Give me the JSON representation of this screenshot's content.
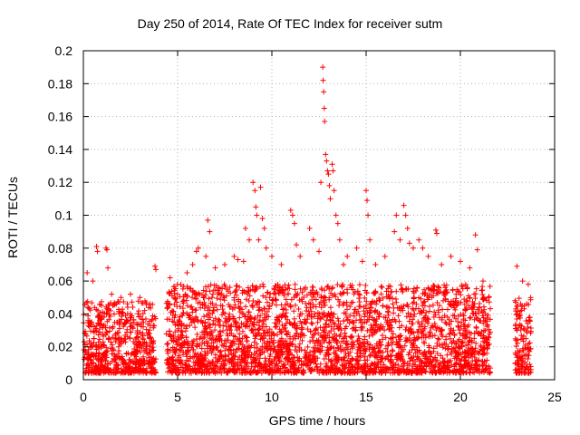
{
  "chart_data": {
    "type": "scatter",
    "title": "Day 250 of 2014, Rate Of TEC Index for receiver sutm",
    "xlabel": "GPS time / hours",
    "ylabel": "ROTI / TECUs",
    "xlim": [
      0,
      25
    ],
    "ylim": [
      0,
      0.2
    ],
    "xticks": [
      "0",
      "5",
      "10",
      "15",
      "20",
      "25"
    ],
    "yticks": [
      "0",
      "0.02",
      "0.04",
      "0.06",
      "0.08",
      "0.1",
      "0.12",
      "0.14",
      "0.16",
      "0.18",
      "0.2"
    ],
    "grid": true,
    "marker": "+",
    "marker_color": "#ff0000",
    "series": [
      {
        "points": [
          [
            0.2,
            0.065
          ],
          [
            0.5,
            0.06
          ],
          [
            0.7,
            0.081
          ],
          [
            0.75,
            0.078
          ],
          [
            1.2,
            0.08
          ],
          [
            1.25,
            0.079
          ],
          [
            1.3,
            0.068
          ],
          [
            1.5,
            0.052
          ],
          [
            2.0,
            0.05
          ],
          [
            2.5,
            0.052
          ],
          [
            3.0,
            0.05
          ],
          [
            3.8,
            0.069
          ],
          [
            3.85,
            0.067
          ],
          [
            4.6,
            0.062
          ],
          [
            5.5,
            0.065
          ],
          [
            5.8,
            0.07
          ],
          [
            6.0,
            0.078
          ],
          [
            6.1,
            0.08
          ],
          [
            6.5,
            0.075
          ],
          [
            6.6,
            0.097
          ],
          [
            6.7,
            0.09
          ],
          [
            7.0,
            0.068
          ],
          [
            7.5,
            0.07
          ],
          [
            8.0,
            0.075
          ],
          [
            8.2,
            0.073
          ],
          [
            8.5,
            0.072
          ],
          [
            8.6,
            0.092
          ],
          [
            8.8,
            0.085
          ],
          [
            9.0,
            0.12
          ],
          [
            9.1,
            0.115
          ],
          [
            9.15,
            0.105
          ],
          [
            9.2,
            0.1
          ],
          [
            9.3,
            0.085
          ],
          [
            9.4,
            0.117
          ],
          [
            9.5,
            0.098
          ],
          [
            9.6,
            0.092
          ],
          [
            9.7,
            0.08
          ],
          [
            10.0,
            0.075
          ],
          [
            10.5,
            0.07
          ],
          [
            11.0,
            0.103
          ],
          [
            11.1,
            0.1
          ],
          [
            11.2,
            0.095
          ],
          [
            11.3,
            0.082
          ],
          [
            11.5,
            0.075
          ],
          [
            12.0,
            0.092
          ],
          [
            12.2,
            0.085
          ],
          [
            12.5,
            0.078
          ],
          [
            12.6,
            0.12
          ],
          [
            12.7,
            0.19
          ],
          [
            12.72,
            0.182
          ],
          [
            12.75,
            0.175
          ],
          [
            12.78,
            0.165
          ],
          [
            12.8,
            0.157
          ],
          [
            12.85,
            0.137
          ],
          [
            12.9,
            0.133
          ],
          [
            12.95,
            0.127
          ],
          [
            13.0,
            0.125
          ],
          [
            13.05,
            0.118
          ],
          [
            13.1,
            0.11
          ],
          [
            13.2,
            0.131
          ],
          [
            13.25,
            0.127
          ],
          [
            13.3,
            0.115
          ],
          [
            13.4,
            0.1
          ],
          [
            13.5,
            0.095
          ],
          [
            13.6,
            0.085
          ],
          [
            13.8,
            0.07
          ],
          [
            14.0,
            0.075
          ],
          [
            14.5,
            0.08
          ],
          [
            14.8,
            0.072
          ],
          [
            15.0,
            0.115
          ],
          [
            15.05,
            0.109
          ],
          [
            15.1,
            0.1
          ],
          [
            15.2,
            0.085
          ],
          [
            15.5,
            0.07
          ],
          [
            16.0,
            0.075
          ],
          [
            16.5,
            0.09
          ],
          [
            16.6,
            0.1
          ],
          [
            16.8,
            0.085
          ],
          [
            17.0,
            0.106
          ],
          [
            17.1,
            0.1
          ],
          [
            17.2,
            0.092
          ],
          [
            17.3,
            0.083
          ],
          [
            17.5,
            0.08
          ],
          [
            17.8,
            0.085
          ],
          [
            18.0,
            0.08
          ],
          [
            18.3,
            0.075
          ],
          [
            18.7,
            0.091
          ],
          [
            18.75,
            0.089
          ],
          [
            19.0,
            0.07
          ],
          [
            19.5,
            0.075
          ],
          [
            20.0,
            0.072
          ],
          [
            20.5,
            0.068
          ],
          [
            20.8,
            0.088
          ],
          [
            20.9,
            0.079
          ],
          [
            21.2,
            0.06
          ],
          [
            21.5,
            0.05
          ],
          [
            23.0,
            0.069
          ],
          [
            23.3,
            0.06
          ],
          [
            23.6,
            0.058
          ]
        ]
      }
    ]
  }
}
